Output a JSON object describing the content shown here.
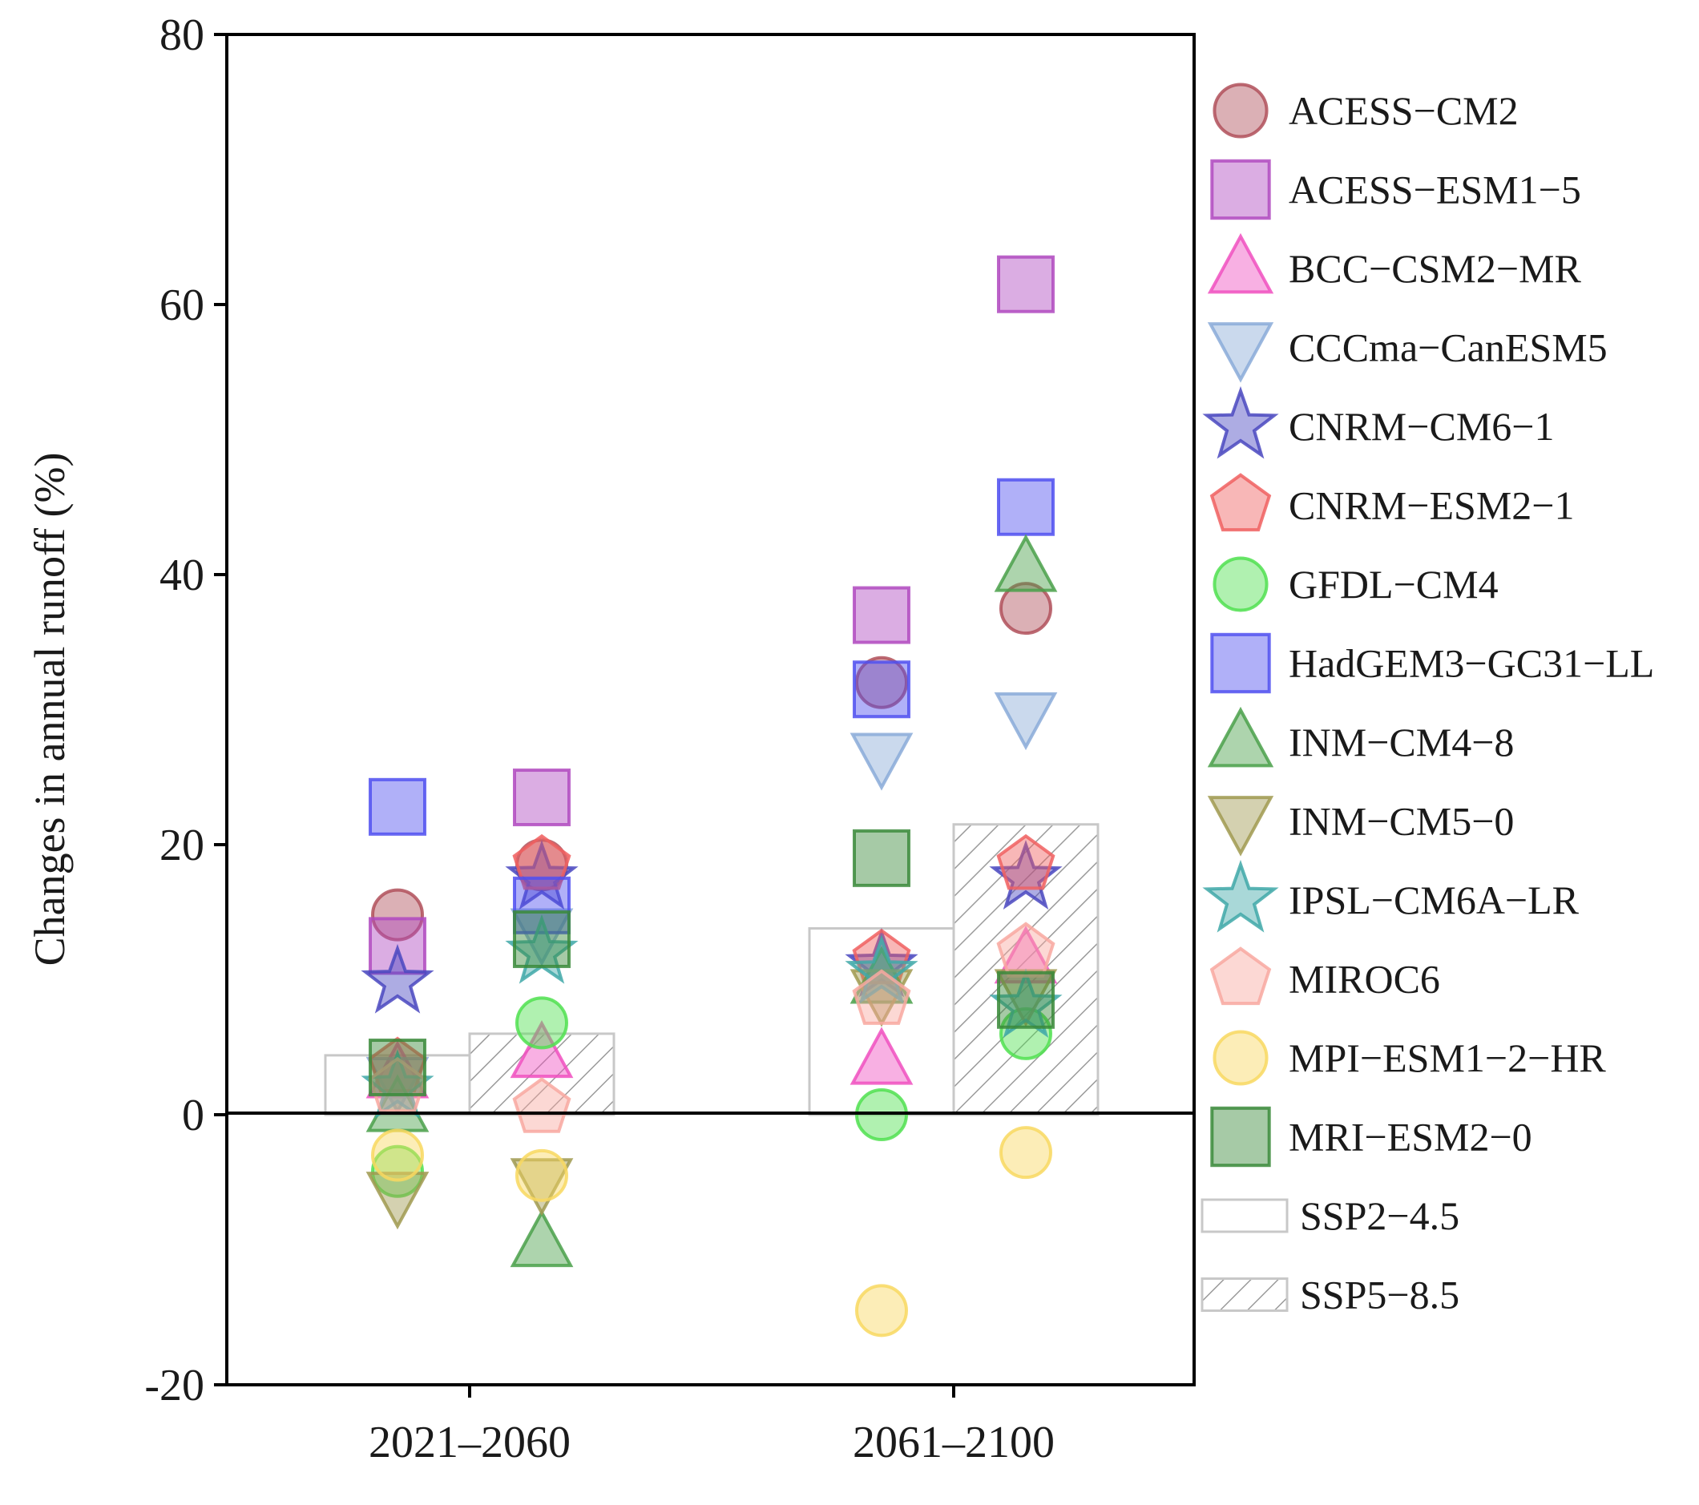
{
  "chart_data": {
    "type": "scatter",
    "title": "",
    "xlabel": "",
    "ylabel": "Changes in annual runoff (%)",
    "ylim": [
      -20,
      80
    ],
    "yticks": [
      80,
      60,
      40,
      20,
      0,
      -20
    ],
    "ytick_labels": [
      "80",
      "60",
      "40",
      "20",
      "0",
      "-20"
    ],
    "periods": [
      "2021–2060",
      "2061–2100"
    ],
    "scenarios": [
      {
        "name": "SSP2−4.5",
        "hatch": false,
        "mean": [
          4.4,
          13.8
        ]
      },
      {
        "name": "SSP5−8.5",
        "hatch": true,
        "mean": [
          6.0,
          21.5
        ]
      }
    ],
    "models": [
      {
        "name": "ACESS−CM2",
        "marker": "circle",
        "color": "#b0505a",
        "values": {
          "SSP2−4.5": [
            14.8,
            32.0
          ],
          "SSP5−8.5": [
            18.5,
            37.5
          ]
        }
      },
      {
        "name": "ACESS−ESM1−5",
        "marker": "square",
        "color": "#b04ac0",
        "values": {
          "SSP2−4.5": [
            12.5,
            37.0
          ],
          "SSP5−8.5": [
            23.5,
            61.5
          ]
        }
      },
      {
        "name": "BCC−CSM2−MR",
        "marker": "triangle-up",
        "color": "#f050c0",
        "values": {
          "SSP2−4.5": [
            3.0,
            4.0
          ],
          "SSP5−8.5": [
            4.5,
            11.5
          ]
        }
      },
      {
        "name": "CCCma−CanESM5",
        "marker": "triangle-down",
        "color": "#8aaad8",
        "values": {
          "SSP2−4.5": [
            2.5,
            26.5
          ],
          "SSP5−8.5": [
            13.5,
            29.5
          ]
        }
      },
      {
        "name": "CNRM−CM6−1",
        "marker": "star",
        "color": "#4a48c0",
        "values": {
          "SSP2−4.5": [
            9.8,
            11.0
          ],
          "SSP5−8.5": [
            17.5,
            17.5
          ]
        }
      },
      {
        "name": "CNRM−ESM2−1",
        "marker": "pentagon",
        "color": "#f06060",
        "values": {
          "SSP2−4.5": [
            3.5,
            11.5
          ],
          "SSP5−8.5": [
            18.5,
            18.5
          ]
        }
      },
      {
        "name": "GFDL−CM4",
        "marker": "circle",
        "color": "#50e050",
        "values": {
          "SSP2−4.5": [
            -4.2,
            0.0
          ],
          "SSP5−8.5": [
            6.8,
            6.0
          ]
        }
      },
      {
        "name": "HadGEM3−GC31−LL",
        "marker": "square",
        "color": "#5050f0",
        "values": {
          "SSP2−4.5": [
            22.8,
            31.5
          ],
          "SSP5−8.5": [
            15.5,
            45.0
          ]
        }
      },
      {
        "name": "INM−CM4−8",
        "marker": "triangle-up",
        "color": "#4aa04a",
        "values": {
          "SSP2−4.5": [
            0.5,
            10.0
          ],
          "SSP5−8.5": [
            -9.5,
            40.5
          ]
        }
      },
      {
        "name": "INM−CM5−0",
        "marker": "triangle-down",
        "color": "#a09a50",
        "values": {
          "SSP2−4.5": [
            -6.0,
            9.0
          ],
          "SSP5−8.5": [
            -5.0,
            9.0
          ]
        }
      },
      {
        "name": "IPSL−CM6A−LR",
        "marker": "star",
        "color": "#40a8a8",
        "values": {
          "SSP2−4.5": [
            2.0,
            10.5
          ],
          "SSP5−8.5": [
            12.0,
            8.0
          ]
        }
      },
      {
        "name": "MIROC6",
        "marker": "pentagon",
        "color": "#f8a8a0",
        "values": {
          "SSP2−4.5": [
            2.0,
            8.5
          ],
          "SSP5−8.5": [
            0.5,
            12.0
          ]
        }
      },
      {
        "name": "MPI−ESM1−2−HR",
        "marker": "circle",
        "color": "#f8d860",
        "values": {
          "SSP2−4.5": [
            -3.0,
            -14.5
          ],
          "SSP5−8.5": [
            -4.5,
            -2.8
          ]
        }
      },
      {
        "name": "MRI−ESM2−0",
        "marker": "square",
        "color": "#3a8a3a",
        "values": {
          "SSP2−4.5": [
            3.5,
            19.0
          ],
          "SSP5−8.5": [
            13.0,
            8.5
          ]
        }
      }
    ]
  }
}
